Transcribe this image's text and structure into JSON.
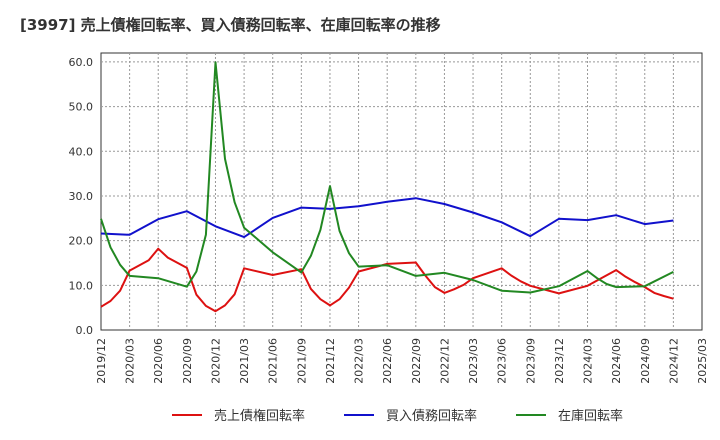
{
  "chart_data": {
    "type": "line",
    "title": "[3997]  売上債権回転率、買入債務回転率、在庫回転率の推移",
    "xlabel": "",
    "ylabel": "",
    "ylim": [
      0,
      62
    ],
    "y_ticks": [
      0,
      10,
      20,
      30,
      40,
      50,
      60
    ],
    "y_tick_labels": [
      "0.0",
      "10.0",
      "20.0",
      "30.0",
      "40.0",
      "50.0",
      "60.0"
    ],
    "x_tick_labels": [
      "2019/12",
      "2020/03",
      "2020/06",
      "2020/09",
      "2020/12",
      "2021/03",
      "2021/06",
      "2021/09",
      "2021/12",
      "2022/03",
      "2022/06",
      "2022/09",
      "2022/12",
      "2023/03",
      "2023/06",
      "2023/09",
      "2023/12",
      "2024/03",
      "2024/06",
      "2024/09",
      "2024/12",
      "2025/03"
    ],
    "x_range_months": [
      0,
      63
    ],
    "grid": true,
    "legend_position": "bottom",
    "series": [
      {
        "name": "売上債権回転率",
        "color": "#dd1111",
        "points": [
          [
            0,
            5.2
          ],
          [
            1,
            6.5
          ],
          [
            2,
            8.8
          ],
          [
            3,
            13.3
          ],
          [
            5,
            15.6
          ],
          [
            6,
            18.2
          ],
          [
            7,
            16.2
          ],
          [
            9,
            13.9
          ],
          [
            10,
            7.9
          ],
          [
            11,
            5.4
          ],
          [
            12,
            4.2
          ],
          [
            13,
            5.5
          ],
          [
            14,
            8.0
          ],
          [
            15,
            13.8
          ],
          [
            18,
            12.3
          ],
          [
            21,
            13.6
          ],
          [
            22,
            9.2
          ],
          [
            23,
            6.9
          ],
          [
            24,
            5.5
          ],
          [
            25,
            6.9
          ],
          [
            26,
            9.5
          ],
          [
            27,
            13.1
          ],
          [
            30,
            14.8
          ],
          [
            33,
            15.1
          ],
          [
            34,
            12.2
          ],
          [
            35,
            9.6
          ],
          [
            36,
            8.3
          ],
          [
            37,
            9.1
          ],
          [
            38,
            10.1
          ],
          [
            39,
            11.6
          ],
          [
            42,
            13.8
          ],
          [
            43,
            12.2
          ],
          [
            44,
            10.9
          ],
          [
            45,
            9.9
          ],
          [
            48,
            8.2
          ],
          [
            51,
            9.9
          ],
          [
            54,
            13.4
          ],
          [
            55,
            11.9
          ],
          [
            56,
            10.7
          ],
          [
            57,
            9.6
          ],
          [
            58,
            8.3
          ],
          [
            59,
            7.6
          ],
          [
            60,
            7.0
          ]
        ]
      },
      {
        "name": "買入債務回転率",
        "color": "#1111cc",
        "points": [
          [
            0,
            21.6
          ],
          [
            3,
            21.3
          ],
          [
            6,
            24.8
          ],
          [
            9,
            26.6
          ],
          [
            12,
            23.2
          ],
          [
            15,
            20.8
          ],
          [
            18,
            25.1
          ],
          [
            21,
            27.4
          ],
          [
            24,
            27.1
          ],
          [
            27,
            27.7
          ],
          [
            30,
            28.7
          ],
          [
            33,
            29.5
          ],
          [
            36,
            28.2
          ],
          [
            39,
            26.3
          ],
          [
            42,
            24.1
          ],
          [
            45,
            21.0
          ],
          [
            48,
            24.9
          ],
          [
            51,
            24.6
          ],
          [
            54,
            25.7
          ],
          [
            57,
            23.7
          ],
          [
            60,
            24.5
          ]
        ]
      },
      {
        "name": "在庫回転率",
        "color": "#228822",
        "points": [
          [
            0,
            24.9
          ],
          [
            1,
            18.5
          ],
          [
            2,
            14.6
          ],
          [
            3,
            12.1
          ],
          [
            6,
            11.6
          ],
          [
            9,
            9.7
          ],
          [
            10,
            13.1
          ],
          [
            11,
            21.3
          ],
          [
            12,
            59.9
          ],
          [
            13,
            38.3
          ],
          [
            14,
            28.6
          ],
          [
            15,
            22.9
          ],
          [
            18,
            17.4
          ],
          [
            21,
            12.9
          ],
          [
            22,
            16.6
          ],
          [
            23,
            22.4
          ],
          [
            24,
            32.2
          ],
          [
            25,
            22.2
          ],
          [
            26,
            17.2
          ],
          [
            27,
            14.2
          ],
          [
            30,
            14.5
          ],
          [
            33,
            12.1
          ],
          [
            36,
            12.8
          ],
          [
            39,
            11.2
          ],
          [
            42,
            8.8
          ],
          [
            45,
            8.4
          ],
          [
            48,
            9.8
          ],
          [
            51,
            13.2
          ],
          [
            52,
            11.6
          ],
          [
            53,
            10.3
          ],
          [
            54,
            9.6
          ],
          [
            57,
            9.8
          ],
          [
            60,
            13.0
          ]
        ]
      }
    ]
  }
}
